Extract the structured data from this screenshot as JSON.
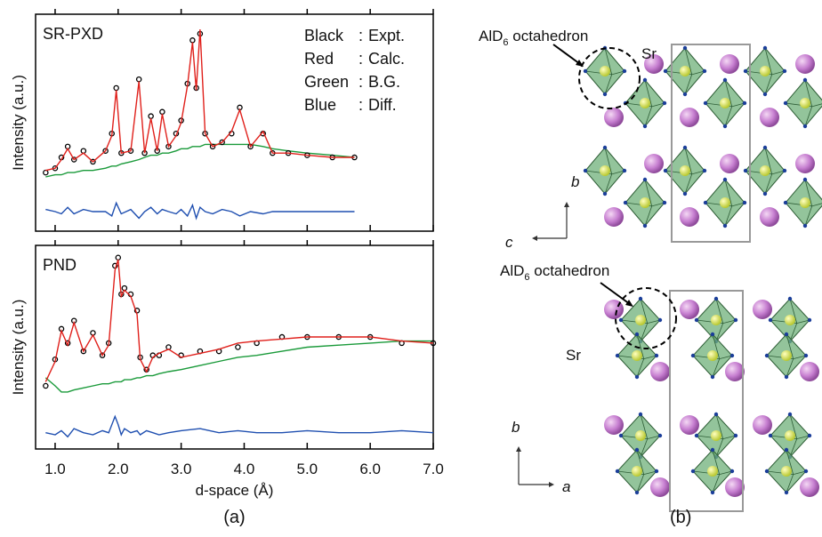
{
  "chart_data": [
    {
      "type": "line",
      "title": "SR-PXD",
      "y_label": "Intensity (a.u.)",
      "legend_separator": ":",
      "x": [
        0.85,
        1.0,
        1.1,
        1.2,
        1.3,
        1.45,
        1.6,
        1.8,
        1.9,
        1.97,
        2.05,
        2.2,
        2.33,
        2.42,
        2.52,
        2.62,
        2.7,
        2.8,
        2.92,
        3.0,
        3.1,
        3.18,
        3.24,
        3.3,
        3.38,
        3.5,
        3.65,
        3.8,
        3.93,
        4.1,
        4.3,
        4.45,
        4.7,
        5.0,
        5.4,
        5.75
      ],
      "series": [
        {
          "name": "Expt.",
          "color_label": "Black",
          "color": "#000000",
          "marker": "circle",
          "values": [
            27,
            29,
            34,
            39,
            33,
            37,
            32,
            37,
            45,
            66,
            36,
            37,
            70,
            36,
            53,
            37,
            55,
            39,
            45,
            51,
            68,
            88,
            66,
            91,
            45,
            39,
            41,
            45,
            57,
            39,
            45,
            36,
            36,
            35,
            34,
            34
          ]
        },
        {
          "name": "Calc.",
          "color_label": "Red",
          "color": "#e0201b",
          "values": [
            28,
            29,
            33,
            38,
            33,
            36,
            32,
            37,
            44,
            65,
            36,
            37,
            69,
            36,
            52,
            37,
            54,
            39,
            44,
            50,
            67,
            87,
            65,
            93,
            45,
            39,
            41,
            46,
            56,
            39,
            46,
            36,
            36,
            35,
            34,
            34
          ]
        },
        {
          "name": "B.G.",
          "color_label": "Green",
          "color": "#1a9a3a",
          "values": [
            25,
            26,
            26,
            27,
            27,
            28,
            28,
            29,
            30,
            30,
            31,
            32,
            33,
            34,
            35,
            35,
            36,
            36,
            37,
            38,
            38,
            39,
            39,
            39,
            40,
            40,
            40,
            40,
            40,
            40,
            39,
            38,
            37,
            36,
            35,
            34
          ]
        },
        {
          "name": "Diff.",
          "color_label": "Blue",
          "color": "#1f4fb0",
          "values": [
            10,
            9,
            8,
            11,
            8,
            10,
            9,
            9,
            7,
            13,
            8,
            10,
            6,
            9,
            11,
            8,
            10,
            9,
            8,
            10,
            7,
            12,
            6,
            11,
            9,
            8,
            10,
            9,
            7,
            9,
            8,
            9,
            9,
            9,
            9,
            9
          ]
        }
      ],
      "xlim": [
        0.69,
        7.0
      ],
      "xticks": [
        1,
        2,
        3,
        4,
        5,
        6,
        7
      ],
      "ylim": [
        0,
        100
      ]
    },
    {
      "type": "line",
      "title": "PND",
      "y_label": "Intensity (a.u.)",
      "x_label": "d-space (Å)",
      "panel_label": "(a)",
      "x": [
        0.85,
        1.0,
        1.1,
        1.2,
        1.3,
        1.45,
        1.6,
        1.75,
        1.85,
        1.95,
        2.0,
        2.05,
        2.1,
        2.2,
        2.3,
        2.35,
        2.45,
        2.55,
        2.65,
        2.8,
        3.0,
        3.3,
        3.6,
        3.9,
        4.2,
        4.6,
        5.0,
        5.5,
        6.0,
        6.5,
        7.0
      ],
      "series": [
        {
          "name": "Expt.",
          "color": "#000000",
          "marker": "circle",
          "values": [
            31,
            44,
            59,
            52,
            63,
            48,
            57,
            46,
            52,
            90,
            94,
            76,
            79,
            76,
            68,
            45,
            39,
            46,
            46,
            50,
            46,
            48,
            48,
            50,
            52,
            55,
            55,
            55,
            55,
            52,
            52
          ]
        },
        {
          "name": "Calc.",
          "color": "#e0201b",
          "values": [
            33,
            43,
            58,
            51,
            62,
            48,
            56,
            46,
            51,
            88,
            93,
            75,
            78,
            75,
            66,
            44,
            38,
            45,
            47,
            49,
            45,
            47,
            49,
            52,
            53,
            54,
            55,
            55,
            55,
            53,
            52
          ]
        },
        {
          "name": "B.G.",
          "color": "#1a9a3a",
          "values": [
            35,
            31,
            28,
            28,
            29,
            30,
            31,
            32,
            32,
            33,
            33,
            33,
            34,
            34,
            35,
            35,
            36,
            36,
            37,
            38,
            39,
            41,
            43,
            45,
            46,
            48,
            50,
            51,
            52,
            53,
            53
          ]
        },
        {
          "name": "Diff.",
          "color": "#1f4fb0",
          "values": [
            8,
            7,
            9,
            6,
            10,
            8,
            7,
            9,
            8,
            16,
            12,
            7,
            10,
            8,
            9,
            7,
            9,
            8,
            7,
            8,
            9,
            10,
            8,
            9,
            8,
            8,
            9,
            8,
            8,
            9,
            8
          ]
        }
      ],
      "xlim": [
        0.69,
        7.0
      ],
      "xticks": [
        {
          "value": 1,
          "label": "1.0"
        },
        {
          "value": 2,
          "label": "2.0"
        },
        {
          "value": 3,
          "label": "3.0"
        },
        {
          "value": 4,
          "label": "4.0"
        },
        {
          "value": 5,
          "label": "5.0"
        },
        {
          "value": 6,
          "label": "6.0"
        },
        {
          "value": 7,
          "label": "7.0"
        }
      ],
      "ylim": [
        0,
        100
      ]
    }
  ],
  "diagram": {
    "top": {
      "label": [
        "AlD",
        "6",
        " octahedron"
      ],
      "atom": "Sr",
      "axis_vertical": "b",
      "axis_horizontal": "c"
    },
    "bottom": {
      "label": [
        "AlD",
        "6",
        " octahedron"
      ],
      "atom": "Sr",
      "axis_vertical": "b",
      "axis_horizontal": "a"
    },
    "panel_label": "(b)"
  }
}
